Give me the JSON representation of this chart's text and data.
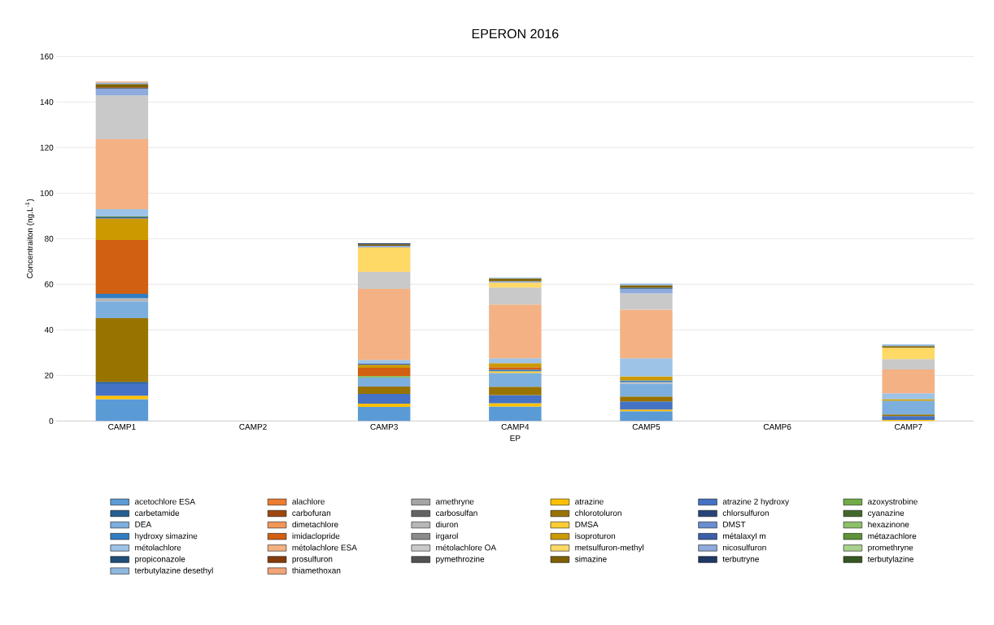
{
  "chart_data": {
    "type": "bar",
    "stacked": true,
    "title": "EPERON 2016",
    "xlabel": "EP",
    "ylabel": "Concentraiton (ng.L$^{-1}$)",
    "categories": [
      "CAMP1",
      "CAMP2",
      "CAMP3",
      "CAMP4",
      "CAMP5",
      "CAMP6",
      "CAMP7"
    ],
    "ylim": [
      0,
      160
    ],
    "yticks": [
      0,
      20,
      40,
      60,
      80,
      100,
      120,
      140,
      160
    ],
    "grid": "y",
    "legend": "bottom",
    "series": [
      {
        "name": "acetochlore ESA",
        "color": "#5b9bd5",
        "values": [
          9.6,
          null,
          6.2,
          6.4,
          4.3,
          null,
          null
        ]
      },
      {
        "name": "alachlore",
        "color": "#ed7d31",
        "values": [
          null,
          null,
          null,
          null,
          null,
          null,
          null
        ]
      },
      {
        "name": "amethryne",
        "color": "#a5a5a5",
        "values": [
          null,
          null,
          null,
          null,
          null,
          null,
          null
        ]
      },
      {
        "name": "atrazine",
        "color": "#ffc000",
        "values": [
          1.5,
          null,
          1.4,
          1.4,
          0.7,
          null,
          0.5
        ]
      },
      {
        "name": "atrazine 2 hydroxy",
        "color": "#4472c4",
        "values": [
          5.4,
          null,
          4.3,
          3.6,
          3.6,
          null,
          1.7
        ]
      },
      {
        "name": "azoxystrobine",
        "color": "#70ad47",
        "values": [
          null,
          null,
          null,
          null,
          null,
          null,
          null
        ]
      },
      {
        "name": "carbetamide",
        "color": "#255e91",
        "values": [
          0.7,
          null,
          null,
          null,
          null,
          null,
          null
        ]
      },
      {
        "name": "carbofuran",
        "color": "#9e480e",
        "values": [
          null,
          null,
          null,
          null,
          null,
          null,
          null
        ]
      },
      {
        "name": "carbosulfan",
        "color": "#636363",
        "values": [
          null,
          null,
          null,
          null,
          null,
          null,
          null
        ]
      },
      {
        "name": "chlorotoluron",
        "color": "#997300",
        "values": [
          27.9,
          null,
          3.2,
          3.6,
          2.1,
          null,
          0.7
        ]
      },
      {
        "name": "chlorsulfuron",
        "color": "#264478",
        "values": [
          null,
          null,
          null,
          null,
          null,
          null,
          null
        ]
      },
      {
        "name": "cyanazine",
        "color": "#43682b",
        "values": [
          null,
          null,
          null,
          null,
          null,
          null,
          null
        ]
      },
      {
        "name": "DEA",
        "color": "#7cafdd",
        "values": [
          7.4,
          null,
          3.9,
          6.1,
          5.7,
          null,
          6.0
        ]
      },
      {
        "name": "dimetachlore",
        "color": "#f1975a",
        "values": [
          null,
          null,
          null,
          null,
          null,
          null,
          null
        ]
      },
      {
        "name": "diuron",
        "color": "#b7b7b7",
        "values": [
          1.4,
          null,
          null,
          null,
          0.7,
          null,
          null
        ]
      },
      {
        "name": "DMSA",
        "color": "#ffcd33",
        "values": [
          null,
          null,
          null,
          0.7,
          null,
          null,
          null
        ]
      },
      {
        "name": "DMST",
        "color": "#698ed0",
        "values": [
          null,
          null,
          null,
          null,
          null,
          null,
          null
        ]
      },
      {
        "name": "hexazinone",
        "color": "#8cc168",
        "values": [
          null,
          null,
          0.8,
          null,
          null,
          null,
          null
        ]
      },
      {
        "name": "hydroxy simazine",
        "color": "#327dc2",
        "values": [
          1.9,
          null,
          null,
          0.7,
          0.7,
          null,
          null
        ]
      },
      {
        "name": "imidaclopride",
        "color": "#d26012",
        "values": [
          23.6,
          null,
          3.5,
          1.1,
          null,
          null,
          null
        ]
      },
      {
        "name": "irgarol",
        "color": "#8b8b8b",
        "values": [
          null,
          null,
          null,
          null,
          null,
          null,
          null
        ]
      },
      {
        "name": "isoproturon",
        "color": "#cc9a00",
        "values": [
          9.5,
          null,
          1.4,
          1.8,
          1.8,
          null,
          0.7
        ]
      },
      {
        "name": "métalaxyl m",
        "color": "#3a5ea8",
        "values": [
          0.5,
          null,
          0.4,
          null,
          null,
          null,
          null
        ]
      },
      {
        "name": "métazachlore",
        "color": "#5e9238",
        "values": [
          0.4,
          null,
          null,
          null,
          null,
          null,
          null
        ]
      },
      {
        "name": "métolachlore",
        "color": "#9dc3e6",
        "values": [
          3.2,
          null,
          1.7,
          2.1,
          7.9,
          null,
          2.6
        ]
      },
      {
        "name": "métolachlore ESA",
        "color": "#f4b183",
        "values": [
          30.7,
          null,
          31.2,
          23.6,
          21.4,
          null,
          10.4
        ]
      },
      {
        "name": "métolachlore OA",
        "color": "#c9c9c9",
        "values": [
          19.2,
          null,
          7.5,
          7.5,
          7.1,
          null,
          4.6
        ]
      },
      {
        "name": "metsulfuron-methyl",
        "color": "#ffd966",
        "values": [
          null,
          null,
          10.7,
          2.1,
          null,
          null,
          5.0
        ]
      },
      {
        "name": "nicosulfuron",
        "color": "#8faadc",
        "values": [
          2.9,
          null,
          0.7,
          0.7,
          2.1,
          null,
          null
        ]
      },
      {
        "name": "promethryne",
        "color": "#a9d18e",
        "values": [
          null,
          null,
          null,
          null,
          null,
          null,
          null
        ]
      },
      {
        "name": "propiconazole",
        "color": "#1f4e79",
        "values": [
          0.3,
          null,
          null,
          null,
          0.4,
          null,
          null
        ]
      },
      {
        "name": "prosulfuron",
        "color": "#843c0c",
        "values": [
          0.4,
          null,
          null,
          null,
          null,
          null,
          null
        ]
      },
      {
        "name": "pymethrozine",
        "color": "#525252",
        "values": [
          null,
          null,
          null,
          null,
          null,
          null,
          null
        ]
      },
      {
        "name": "simazine",
        "color": "#7f6000",
        "values": [
          1.4,
          null,
          0.6,
          1.1,
          1.1,
          null,
          0.7
        ]
      },
      {
        "name": "terbutryne",
        "color": "#203864",
        "values": [
          null,
          null,
          0.5,
          null,
          null,
          null,
          null
        ]
      },
      {
        "name": "terbutylazine",
        "color": "#375623",
        "values": [
          null,
          null,
          null,
          null,
          null,
          null,
          null
        ]
      },
      {
        "name": "terbutylazine desethyl",
        "color": "#8fb8e0",
        "values": [
          0.6,
          null,
          null,
          0.4,
          0.7,
          null,
          0.7
        ]
      },
      {
        "name": "thiamethoxan",
        "color": "#f2a477",
        "values": [
          0.5,
          null,
          null,
          null,
          null,
          null,
          null
        ]
      }
    ]
  }
}
